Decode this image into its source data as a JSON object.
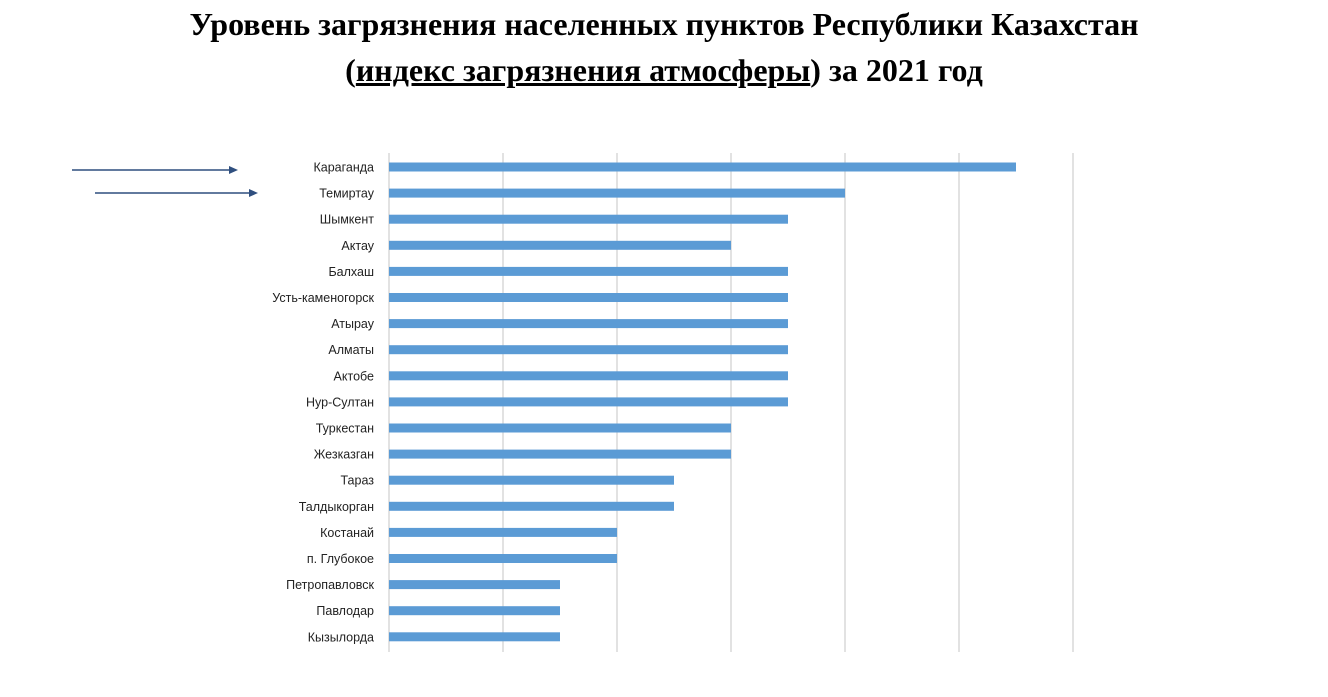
{
  "title": {
    "line1": "Уровень загрязнения населенных пунктов Республики Казахстан",
    "line2_open": "(",
    "line2_link": "индекс загрязнения атмосферы",
    "line2_close": ") за 2021 год"
  },
  "colors": {
    "bar": "#5b9bd5",
    "grid": "#d9d9d9",
    "arrow": "#2f4f7f"
  },
  "chart_data": {
    "type": "bar",
    "orientation": "horizontal",
    "title": "",
    "xlabel": "",
    "ylabel": "",
    "xlim": [
      0,
      6
    ],
    "grid": true,
    "categories": [
      "Караганда",
      "Темиртау",
      "Шымкент",
      "Актау",
      "Балхаш",
      "Усть-каменогорск",
      "Атырау",
      "Алматы",
      "Актобе",
      "Нур-Султан",
      "Туркестан",
      "Жезказган",
      "Тараз",
      "Талдыкорган",
      "Костанай",
      "п. Глубокое",
      "Петропавловск",
      "Павлодар",
      "Кызылорда"
    ],
    "values": [
      5.5,
      4,
      3.5,
      3,
      3.5,
      3.5,
      3.5,
      3.5,
      3.5,
      3.5,
      3,
      3,
      2.5,
      2.5,
      2,
      2,
      1.5,
      1.5,
      1.5
    ],
    "highlighted": [
      "Караганда",
      "Темиртау"
    ]
  }
}
